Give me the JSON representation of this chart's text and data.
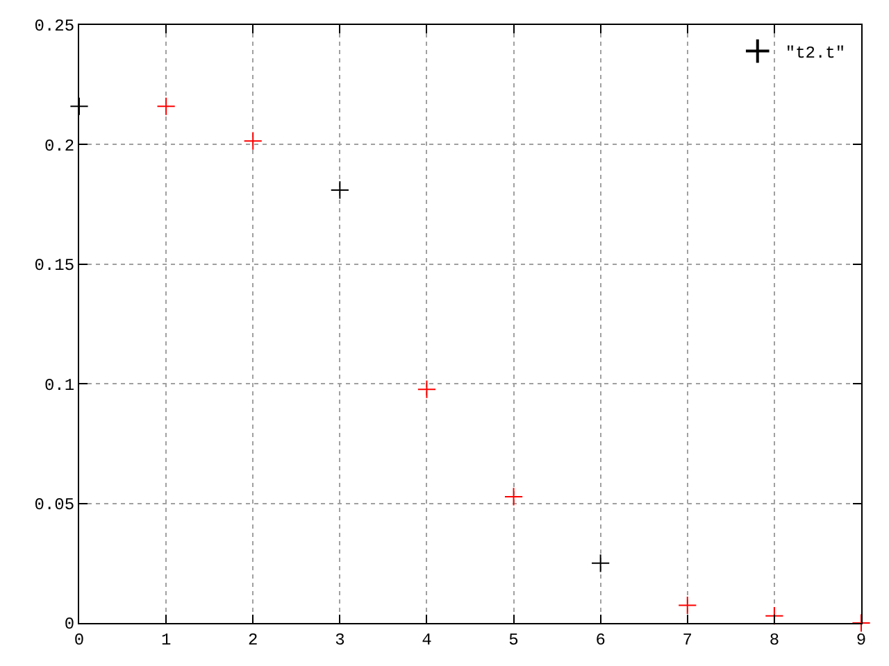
{
  "chart_data": {
    "type": "scatter",
    "x": [
      0,
      1,
      2,
      3,
      4,
      5,
      6,
      7,
      8,
      9
    ],
    "series": [
      {
        "name": "\"t2.t\"",
        "colors": [
          "#000000",
          "#ff0000",
          "#ff0000",
          "#000000",
          "#ff0000",
          "#ff0000",
          "#000000",
          "#ff0000",
          "#ff0000",
          "#ff0000"
        ],
        "values": [
          0.216,
          0.216,
          0.2015,
          0.181,
          0.0977,
          0.0528,
          0.025,
          0.0074,
          0.003,
          0.0
        ]
      }
    ],
    "xlim": [
      0,
      9
    ],
    "xticks": [
      0,
      1,
      2,
      3,
      4,
      5,
      6,
      7,
      8,
      9
    ],
    "ylim": [
      0,
      0.25
    ],
    "yticks": [
      0,
      0.05,
      0.1,
      0.15,
      0.2,
      0.25
    ],
    "grid": true,
    "legend": "top right",
    "marker": "cross"
  }
}
